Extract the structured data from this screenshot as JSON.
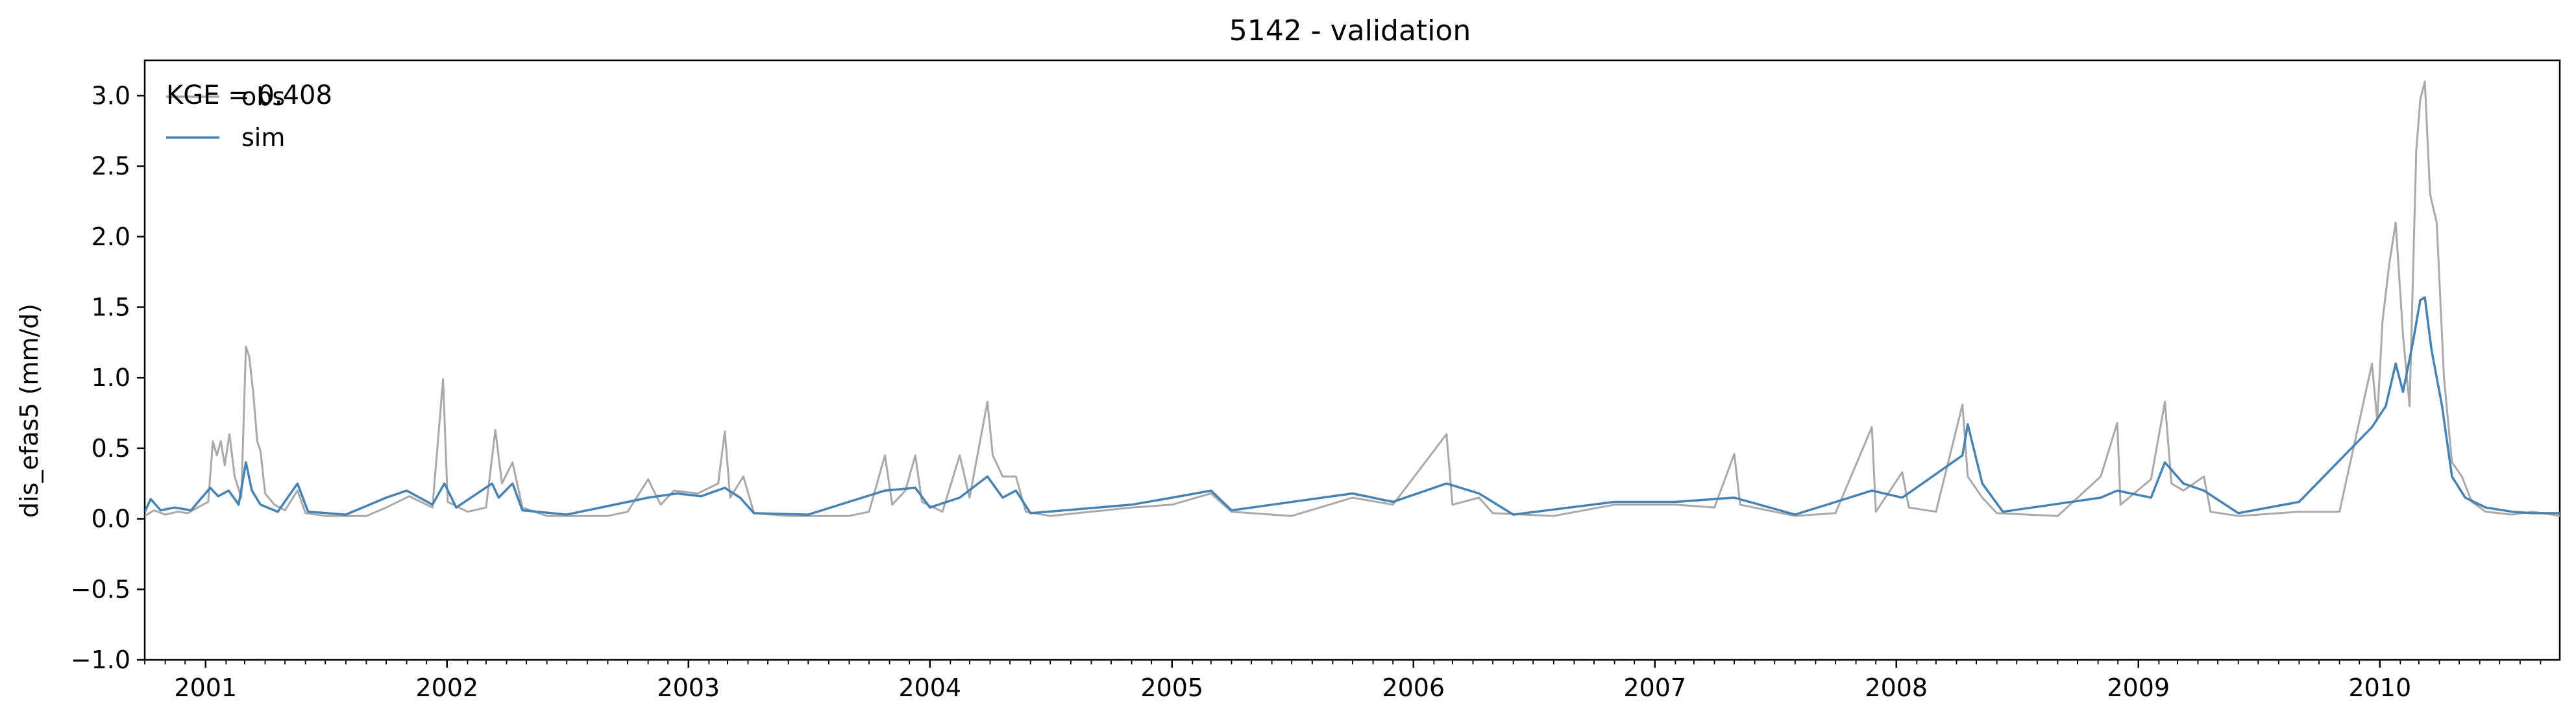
{
  "chart_data": {
    "type": "line",
    "title": "5142 - validation",
    "xlabel": "",
    "ylabel": "dis_efas5 (mm/d)",
    "xlim": [
      "2000-10-01",
      "2010-09-30"
    ],
    "ylim": [
      -1.0,
      3.25
    ],
    "yticks": [
      -1.0,
      -0.5,
      0.0,
      0.5,
      1.0,
      1.5,
      2.0,
      2.5,
      3.0
    ],
    "ytick_labels": [
      "−1.0",
      "−0.5",
      "0.0",
      "0.5",
      "1.0",
      "1.5",
      "2.0",
      "2.5",
      "3.0"
    ],
    "xticks": [
      "2001-01-01",
      "2002-01-01",
      "2003-01-01",
      "2004-01-01",
      "2005-01-01",
      "2006-01-01",
      "2007-01-01",
      "2008-01-01",
      "2009-01-01",
      "2010-01-01"
    ],
    "xtick_labels": [
      "2001",
      "2002",
      "2003",
      "2004",
      "2005",
      "2006",
      "2007",
      "2008",
      "2009",
      "2010"
    ],
    "grid": false,
    "legend_position": "top-left",
    "annotation": "KGE = 0.408",
    "series": [
      {
        "name": "obs",
        "color": "#a9a9a9",
        "points": [
          [
            "2000-10-01",
            0.02
          ],
          [
            "2000-10-15",
            0.06
          ],
          [
            "2000-11-01",
            0.03
          ],
          [
            "2000-11-20",
            0.05
          ],
          [
            "2000-12-05",
            0.04
          ],
          [
            "2000-12-20",
            0.08
          ],
          [
            "2001-01-05",
            0.12
          ],
          [
            "2001-01-12",
            0.55
          ],
          [
            "2001-01-18",
            0.45
          ],
          [
            "2001-01-24",
            0.55
          ],
          [
            "2001-01-30",
            0.38
          ],
          [
            "2001-02-06",
            0.6
          ],
          [
            "2001-02-14",
            0.3
          ],
          [
            "2001-02-24",
            0.15
          ],
          [
            "2001-03-03",
            1.22
          ],
          [
            "2001-03-08",
            1.15
          ],
          [
            "2001-03-14",
            0.9
          ],
          [
            "2001-03-20",
            0.55
          ],
          [
            "2001-03-25",
            0.48
          ],
          [
            "2001-04-01",
            0.18
          ],
          [
            "2001-04-15",
            0.1
          ],
          [
            "2001-05-01",
            0.06
          ],
          [
            "2001-05-20",
            0.2
          ],
          [
            "2001-06-01",
            0.04
          ],
          [
            "2001-07-01",
            0.02
          ],
          [
            "2001-09-01",
            0.02
          ],
          [
            "2001-10-01",
            0.08
          ],
          [
            "2001-11-05",
            0.16
          ],
          [
            "2001-12-10",
            0.08
          ],
          [
            "2001-12-26",
            0.99
          ],
          [
            "2002-01-02",
            0.12
          ],
          [
            "2002-02-01",
            0.05
          ],
          [
            "2002-03-01",
            0.08
          ],
          [
            "2002-03-15",
            0.63
          ],
          [
            "2002-03-25",
            0.25
          ],
          [
            "2002-04-10",
            0.4
          ],
          [
            "2002-04-25",
            0.08
          ],
          [
            "2002-06-01",
            0.02
          ],
          [
            "2002-09-01",
            0.02
          ],
          [
            "2002-10-01",
            0.05
          ],
          [
            "2002-11-01",
            0.28
          ],
          [
            "2002-11-20",
            0.1
          ],
          [
            "2002-12-10",
            0.2
          ],
          [
            "2003-01-15",
            0.18
          ],
          [
            "2003-02-15",
            0.25
          ],
          [
            "2003-02-25",
            0.62
          ],
          [
            "2003-03-05",
            0.15
          ],
          [
            "2003-03-25",
            0.3
          ],
          [
            "2003-04-10",
            0.04
          ],
          [
            "2003-06-01",
            0.02
          ],
          [
            "2003-09-01",
            0.02
          ],
          [
            "2003-10-01",
            0.05
          ],
          [
            "2003-10-25",
            0.45
          ],
          [
            "2003-11-05",
            0.1
          ],
          [
            "2003-11-25",
            0.2
          ],
          [
            "2003-12-10",
            0.45
          ],
          [
            "2003-12-20",
            0.12
          ],
          [
            "2004-01-20",
            0.05
          ],
          [
            "2004-02-15",
            0.45
          ],
          [
            "2004-03-01",
            0.15
          ],
          [
            "2004-03-28",
            0.83
          ],
          [
            "2004-04-05",
            0.45
          ],
          [
            "2004-04-20",
            0.3
          ],
          [
            "2004-05-10",
            0.3
          ],
          [
            "2004-05-25",
            0.05
          ],
          [
            "2004-07-01",
            0.02
          ],
          [
            "2004-11-01",
            0.08
          ],
          [
            "2005-01-01",
            0.1
          ],
          [
            "2005-03-01",
            0.18
          ],
          [
            "2005-04-01",
            0.05
          ],
          [
            "2005-07-01",
            0.02
          ],
          [
            "2005-10-01",
            0.15
          ],
          [
            "2005-12-01",
            0.1
          ],
          [
            "2006-02-20",
            0.6
          ],
          [
            "2006-03-01",
            0.1
          ],
          [
            "2006-04-10",
            0.15
          ],
          [
            "2006-05-01",
            0.04
          ],
          [
            "2006-08-01",
            0.02
          ],
          [
            "2006-11-01",
            0.1
          ],
          [
            "2007-02-01",
            0.1
          ],
          [
            "2007-04-01",
            0.08
          ],
          [
            "2007-05-01",
            0.46
          ],
          [
            "2007-05-10",
            0.1
          ],
          [
            "2007-08-01",
            0.02
          ],
          [
            "2007-10-01",
            0.04
          ],
          [
            "2007-11-25",
            0.65
          ],
          [
            "2007-12-01",
            0.05
          ],
          [
            "2008-01-10",
            0.33
          ],
          [
            "2008-01-20",
            0.08
          ],
          [
            "2008-03-01",
            0.05
          ],
          [
            "2008-04-10",
            0.81
          ],
          [
            "2008-04-18",
            0.3
          ],
          [
            "2008-05-10",
            0.15
          ],
          [
            "2008-06-01",
            0.04
          ],
          [
            "2008-09-01",
            0.02
          ],
          [
            "2008-11-05",
            0.3
          ],
          [
            "2008-11-30",
            0.68
          ],
          [
            "2008-12-05",
            0.1
          ],
          [
            "2009-01-20",
            0.28
          ],
          [
            "2009-02-10",
            0.83
          ],
          [
            "2009-02-20",
            0.25
          ],
          [
            "2009-03-10",
            0.2
          ],
          [
            "2009-04-10",
            0.3
          ],
          [
            "2009-04-20",
            0.05
          ],
          [
            "2009-06-01",
            0.02
          ],
          [
            "2009-09-01",
            0.05
          ],
          [
            "2009-11-01",
            0.05
          ],
          [
            "2009-12-20",
            1.1
          ],
          [
            "2009-12-28",
            0.7
          ],
          [
            "2010-01-05",
            1.4
          ],
          [
            "2010-01-15",
            1.8
          ],
          [
            "2010-01-25",
            2.1
          ],
          [
            "2010-02-05",
            1.3
          ],
          [
            "2010-02-15",
            0.8
          ],
          [
            "2010-02-25",
            2.6
          ],
          [
            "2010-03-03",
            2.97
          ],
          [
            "2010-03-10",
            3.1
          ],
          [
            "2010-03-18",
            2.3
          ],
          [
            "2010-03-28",
            2.1
          ],
          [
            "2010-04-08",
            1.0
          ],
          [
            "2010-04-20",
            0.4
          ],
          [
            "2010-05-05",
            0.3
          ],
          [
            "2010-05-20",
            0.12
          ],
          [
            "2010-06-10",
            0.05
          ],
          [
            "2010-07-20",
            0.03
          ],
          [
            "2010-08-20",
            0.05
          ],
          [
            "2010-09-30",
            0.02
          ]
        ]
      },
      {
        "name": "sim",
        "color": "#4682b4",
        "points": [
          [
            "2000-10-01",
            0.05
          ],
          [
            "2000-10-10",
            0.14
          ],
          [
            "2000-10-25",
            0.06
          ],
          [
            "2000-11-15",
            0.08
          ],
          [
            "2000-12-10",
            0.06
          ],
          [
            "2001-01-08",
            0.22
          ],
          [
            "2001-01-20",
            0.16
          ],
          [
            "2001-02-05",
            0.2
          ],
          [
            "2001-02-20",
            0.1
          ],
          [
            "2001-03-03",
            0.4
          ],
          [
            "2001-03-12",
            0.2
          ],
          [
            "2001-03-25",
            0.1
          ],
          [
            "2001-04-20",
            0.05
          ],
          [
            "2001-05-20",
            0.25
          ],
          [
            "2001-06-05",
            0.05
          ],
          [
            "2001-08-01",
            0.03
          ],
          [
            "2001-10-01",
            0.15
          ],
          [
            "2001-11-01",
            0.2
          ],
          [
            "2001-12-10",
            0.1
          ],
          [
            "2001-12-28",
            0.25
          ],
          [
            "2002-01-15",
            0.08
          ],
          [
            "2002-03-10",
            0.25
          ],
          [
            "2002-03-20",
            0.15
          ],
          [
            "2002-04-10",
            0.25
          ],
          [
            "2002-04-25",
            0.06
          ],
          [
            "2002-07-01",
            0.03
          ],
          [
            "2002-11-01",
            0.15
          ],
          [
            "2002-12-15",
            0.18
          ],
          [
            "2003-01-20",
            0.16
          ],
          [
            "2003-02-25",
            0.22
          ],
          [
            "2003-03-20",
            0.15
          ],
          [
            "2003-04-10",
            0.04
          ],
          [
            "2003-07-01",
            0.03
          ],
          [
            "2003-10-25",
            0.2
          ],
          [
            "2003-12-10",
            0.22
          ],
          [
            "2004-01-01",
            0.08
          ],
          [
            "2004-02-15",
            0.15
          ],
          [
            "2004-03-28",
            0.3
          ],
          [
            "2004-04-20",
            0.15
          ],
          [
            "2004-05-10",
            0.2
          ],
          [
            "2004-06-01",
            0.04
          ],
          [
            "2004-11-01",
            0.1
          ],
          [
            "2005-01-01",
            0.15
          ],
          [
            "2005-03-01",
            0.2
          ],
          [
            "2005-04-01",
            0.06
          ],
          [
            "2005-10-01",
            0.18
          ],
          [
            "2005-12-01",
            0.12
          ],
          [
            "2006-02-20",
            0.25
          ],
          [
            "2006-04-10",
            0.18
          ],
          [
            "2006-06-01",
            0.03
          ],
          [
            "2006-11-01",
            0.12
          ],
          [
            "2007-02-01",
            0.12
          ],
          [
            "2007-05-01",
            0.15
          ],
          [
            "2007-08-01",
            0.03
          ],
          [
            "2007-11-25",
            0.2
          ],
          [
            "2008-01-10",
            0.15
          ],
          [
            "2008-04-10",
            0.45
          ],
          [
            "2008-04-18",
            0.67
          ],
          [
            "2008-05-10",
            0.25
          ],
          [
            "2008-06-10",
            0.05
          ],
          [
            "2008-11-05",
            0.15
          ],
          [
            "2008-11-30",
            0.2
          ],
          [
            "2009-01-20",
            0.15
          ],
          [
            "2009-02-10",
            0.4
          ],
          [
            "2009-03-10",
            0.25
          ],
          [
            "2009-04-10",
            0.2
          ],
          [
            "2009-06-01",
            0.04
          ],
          [
            "2009-09-01",
            0.12
          ],
          [
            "2009-12-20",
            0.65
          ],
          [
            "2010-01-10",
            0.8
          ],
          [
            "2010-01-25",
            1.1
          ],
          [
            "2010-02-05",
            0.9
          ],
          [
            "2010-02-20",
            1.25
          ],
          [
            "2010-03-03",
            1.55
          ],
          [
            "2010-03-10",
            1.57
          ],
          [
            "2010-03-20",
            1.2
          ],
          [
            "2010-04-05",
            0.8
          ],
          [
            "2010-04-20",
            0.3
          ],
          [
            "2010-05-10",
            0.15
          ],
          [
            "2010-06-10",
            0.08
          ],
          [
            "2010-07-20",
            0.05
          ],
          [
            "2010-08-20",
            0.04
          ],
          [
            "2010-09-30",
            0.04
          ]
        ]
      }
    ]
  }
}
